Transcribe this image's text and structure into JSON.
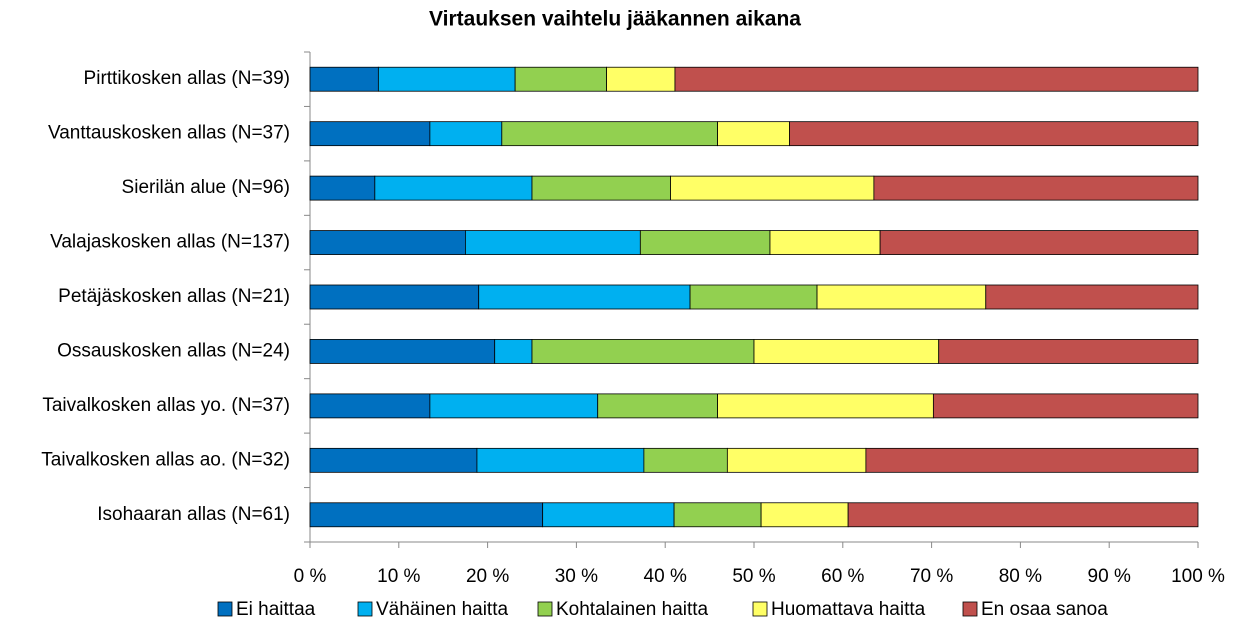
{
  "chart_data": {
    "type": "stacked_barh",
    "title": "Virtauksen vaihtelu jääkannen aikana",
    "categories": [
      "Pirttikosken allas (N=39)",
      "Vanttauskosken allas (N=37)",
      "Sierilän alue (N=96)",
      "Valajaskosken allas (N=137)",
      "Petäjäskosken allas (N=21)",
      "Ossauskosken allas (N=24)",
      "Taivalkosken allas yo. (N=37)",
      "Taivalkosken allas ao. (N=32)",
      "Isohaaran allas (N=61)"
    ],
    "series": [
      {
        "name": "Ei haittaa",
        "color": "#0070c0",
        "values": [
          7.7,
          13.5,
          7.3,
          17.5,
          19.0,
          20.8,
          13.5,
          18.8,
          26.2
        ]
      },
      {
        "name": "Vähäinen haitta",
        "color": "#00b0f0",
        "values": [
          15.4,
          8.1,
          17.7,
          19.7,
          23.8,
          4.2,
          18.9,
          18.8,
          14.8
        ]
      },
      {
        "name": "Kohtalainen haitta",
        "color": "#92d050",
        "values": [
          10.3,
          24.3,
          15.6,
          14.6,
          14.3,
          25.0,
          13.5,
          9.4,
          9.8
        ]
      },
      {
        "name": "Huomattava haitta",
        "color": "#ffff66",
        "values": [
          7.7,
          8.1,
          22.9,
          12.4,
          19.0,
          20.8,
          24.3,
          15.6,
          9.8
        ]
      },
      {
        "name": "En osaa sanoa",
        "color": "#c0504d",
        "values": [
          58.9,
          46.0,
          36.5,
          35.8,
          23.9,
          29.2,
          29.8,
          37.4,
          39.4
        ]
      }
    ],
    "xlim": [
      0,
      100
    ],
    "xticks": [
      {
        "value": 0,
        "label": "0 %"
      },
      {
        "value": 10,
        "label": "10 %"
      },
      {
        "value": 20,
        "label": "20 %"
      },
      {
        "value": 30,
        "label": "30 %"
      },
      {
        "value": 40,
        "label": "40 %"
      },
      {
        "value": 50,
        "label": "50 %"
      },
      {
        "value": 60,
        "label": "60 %"
      },
      {
        "value": 70,
        "label": "70 %"
      },
      {
        "value": 80,
        "label": "80 %"
      },
      {
        "value": 90,
        "label": "90 %"
      },
      {
        "value": 100,
        "label": "100 %"
      }
    ]
  }
}
